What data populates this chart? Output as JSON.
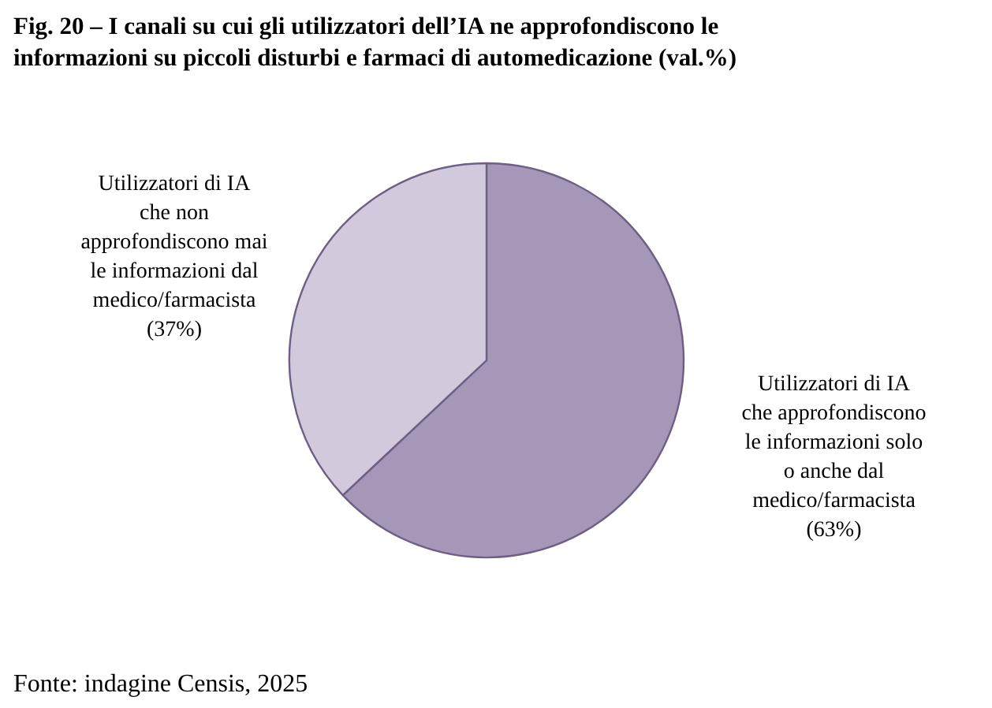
{
  "chart_data": {
    "type": "pie",
    "title": "Fig. 20 – I canali su cui gli utilizzatori dell’IA ne approfondiscono le informazioni su piccoli disturbi e farmaci di automedicazione (val.%)",
    "categories": [
      "Utilizzatori di IA che approfondiscono le informazioni solo o anche dal medico/farmacista",
      "Utilizzatori di IA che non approfondiscono mai le informazioni dal medico/farmacista"
    ],
    "values": [
      63,
      37
    ],
    "colors": [
      "#a597b8",
      "#d2c9dd"
    ],
    "value_labels": [
      "(63%)",
      "(37%)"
    ],
    "annotations": [
      "Fonte: indagine Censis, 2025"
    ]
  }
}
